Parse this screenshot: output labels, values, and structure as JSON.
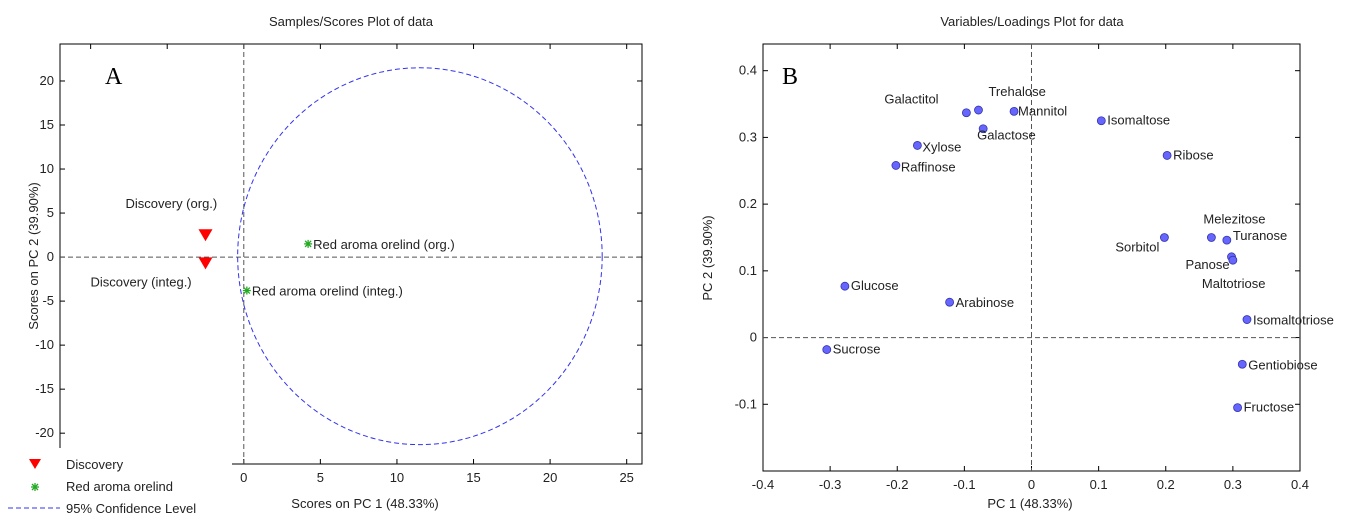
{
  "chart_data": [
    {
      "type": "scatter",
      "panel_label": "A",
      "title": "Samples/Scores Plot of data",
      "xlabel": "Scores on PC 1 (48.33%)",
      "ylabel": "Scores on PC 2 (39.90%)",
      "xlim": [
        -12,
        26
      ],
      "ylim": [
        -23.5,
        24.2
      ],
      "xticks": [
        -10,
        -5,
        0,
        5,
        10,
        15,
        20,
        25
      ],
      "yticks": [
        -20,
        -15,
        -10,
        -5,
        0,
        5,
        10,
        15,
        20
      ],
      "zero_lines": true,
      "ellipse": {
        "name": "95% Confidence Level",
        "color": "#3333ee",
        "center": [
          11.5,
          0.1
        ],
        "rx": 11.9,
        "ry": 21.4
      },
      "series": [
        {
          "name": "Discovery",
          "marker": "triangle-down",
          "color": "#ff0000",
          "points": [
            {
              "x": -2.5,
              "y": 2.6,
              "label": "Discovery (org.)"
            },
            {
              "x": -2.5,
              "y": -0.6,
              "label": "Discovery (integ.)"
            }
          ]
        },
        {
          "name": "Red aroma orelind",
          "marker": "asterisk",
          "color": "#22aa22",
          "points": [
            {
              "x": 4.2,
              "y": 1.5,
              "label": "Red aroma orelind (org.)"
            },
            {
              "x": 0.2,
              "y": -3.8,
              "label": "Red aroma orelind (integ.)"
            }
          ]
        }
      ],
      "legend": {
        "placement": "bottom-left",
        "entries": [
          "Discovery",
          "Red aroma orelind",
          "95% Confidence Level"
        ]
      }
    },
    {
      "type": "scatter",
      "panel_label": "B",
      "title": "Variables/Loadings Plot for data",
      "xlabel": "PC 1 (48.33%)",
      "ylabel": "PC 2 (39.90%)",
      "xlim": [
        -0.4,
        0.4
      ],
      "ylim": [
        -0.2,
        0.44
      ],
      "xticks": [
        "-0.4",
        "-0.3",
        "-0.2",
        "-0.1",
        "0",
        "0.1",
        "0.2",
        "0.3",
        "0.4"
      ],
      "yticks": [
        "-0.1",
        "0",
        "0.1",
        "0.2",
        "0.3",
        "0.4"
      ],
      "zero_lines": true,
      "marker_color": "#6666ff",
      "points": [
        {
          "label": "Galactitol",
          "x": -0.097,
          "y": 0.337
        },
        {
          "label": "Trehalose",
          "x": -0.079,
          "y": 0.341
        },
        {
          "label": "Mannitol",
          "x": -0.026,
          "y": 0.339
        },
        {
          "label": "Galactose",
          "x": -0.072,
          "y": 0.313
        },
        {
          "label": "Isomaltose",
          "x": 0.104,
          "y": 0.325
        },
        {
          "label": "Xylose",
          "x": -0.17,
          "y": 0.288
        },
        {
          "label": "Raffinose",
          "x": -0.202,
          "y": 0.258
        },
        {
          "label": "Ribose",
          "x": 0.202,
          "y": 0.273
        },
        {
          "label": "Melezitose",
          "x": 0.268,
          "y": 0.15
        },
        {
          "label": "Turanose",
          "x": 0.291,
          "y": 0.146
        },
        {
          "label": "Sorbitol",
          "x": 0.198,
          "y": 0.15
        },
        {
          "label": "Panose",
          "x": 0.298,
          "y": 0.121
        },
        {
          "label": "Maltotriose",
          "x": 0.3,
          "y": 0.116
        },
        {
          "label": "Glucose",
          "x": -0.278,
          "y": 0.077
        },
        {
          "label": "Arabinose",
          "x": -0.122,
          "y": 0.053
        },
        {
          "label": "Isomaltotriose",
          "x": 0.321,
          "y": 0.027
        },
        {
          "label": "Sucrose",
          "x": -0.305,
          "y": -0.018
        },
        {
          "label": "Gentiobiose",
          "x": 0.314,
          "y": -0.04
        },
        {
          "label": "Fructose",
          "x": 0.307,
          "y": -0.105
        }
      ]
    }
  ]
}
